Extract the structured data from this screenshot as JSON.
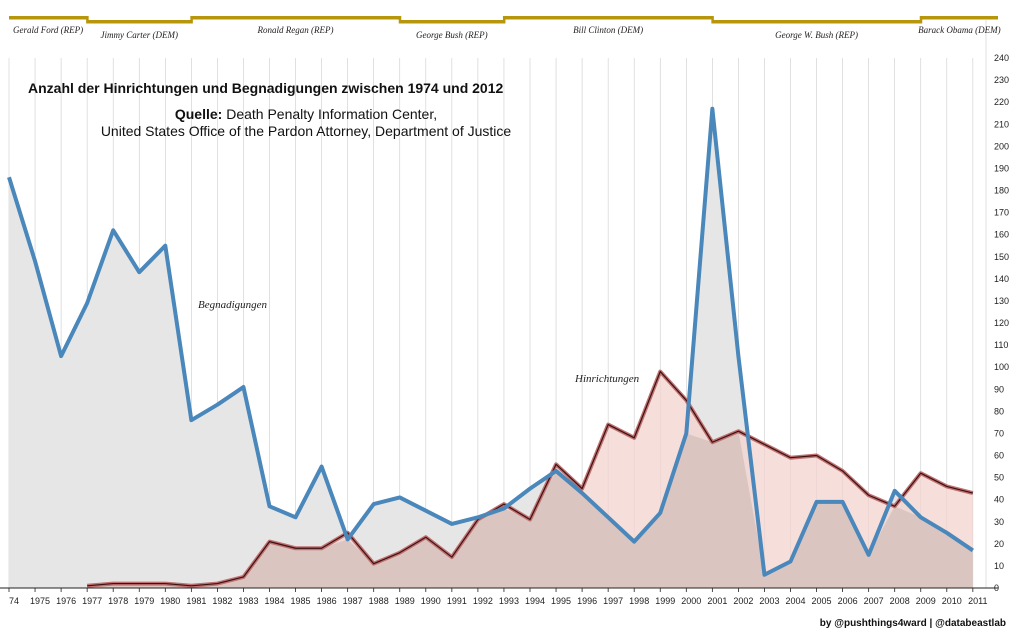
{
  "title": "Anzahl der Hinrichtungen und Begnadigungen zwischen 1974 und 2012",
  "source_label": "Quelle:",
  "source_line1": "Death Penalty Information Center,",
  "source_line2": "United States Office of the Pardon Attorney, Department of Justice",
  "credit": "by @pushthings4ward | @databeastlab",
  "colors": {
    "pardons_line": "#4a87bb",
    "pardons_fill": "#e6e6e6",
    "executions_line": "#c07070",
    "executions_fill": "#f3d3cf",
    "overlap_fill": "#d4c0bc",
    "president_bar": "#b8960c",
    "grid": "#cccccc"
  },
  "presidents": [
    {
      "label": "Gerald Ford (REP)",
      "start": 1974,
      "end": 1977
    },
    {
      "label": "Jimmy Carter (DEM)",
      "start": 1977,
      "end": 1981
    },
    {
      "label": "Ronald Regan (REP)",
      "start": 1981,
      "end": 1989
    },
    {
      "label": "George Bush (REP)",
      "start": 1989,
      "end": 1993
    },
    {
      "label": "Bill Clinton (DEM)",
      "start": 1993,
      "end": 2001
    },
    {
      "label": "George W. Bush (REP)",
      "start": 2001,
      "end": 2009
    },
    {
      "label": "Barack Obama (DEM)",
      "start": 2009,
      "end": 2012
    }
  ],
  "chart_data": {
    "type": "area",
    "x": [
      1974,
      1975,
      1976,
      1977,
      1978,
      1979,
      1980,
      1981,
      1982,
      1983,
      1984,
      1985,
      1986,
      1987,
      1988,
      1989,
      1990,
      1991,
      1992,
      1993,
      1994,
      1995,
      1996,
      1997,
      1998,
      1999,
      2000,
      2001,
      2002,
      2003,
      2004,
      2005,
      2006,
      2007,
      2008,
      2009,
      2010,
      2011
    ],
    "x_tick_labels": [
      "74",
      "1975",
      "1976",
      "1977",
      "1978",
      "1979",
      "1980",
      "1981",
      "1982",
      "1983",
      "1984",
      "1985",
      "1986",
      "1987",
      "1988",
      "1989",
      "1990",
      "1991",
      "1992",
      "1993",
      "1994",
      "1995",
      "1996",
      "1997",
      "1998",
      "1999",
      "2000",
      "2001",
      "2002",
      "2003",
      "2004",
      "2005",
      "2006",
      "2007",
      "2008",
      "2009",
      "2010",
      "2011"
    ],
    "series": [
      {
        "name": "Begnadigungen",
        "values": [
          186,
          148,
          105,
          129,
          162,
          143,
          155,
          76,
          83,
          91,
          37,
          32,
          55,
          22,
          38,
          41,
          35,
          29,
          32,
          36,
          45,
          53,
          43,
          32,
          21,
          34,
          70,
          217,
          105,
          6,
          12,
          39,
          39,
          15,
          44,
          32,
          25,
          17
        ]
      },
      {
        "name": "Hinrichtungen",
        "values": [
          null,
          null,
          null,
          1,
          2,
          2,
          2,
          1,
          2,
          5,
          21,
          18,
          18,
          25,
          11,
          16,
          23,
          14,
          31,
          38,
          31,
          56,
          45,
          74,
          68,
          98,
          85,
          66,
          71,
          65,
          59,
          60,
          53,
          42,
          37,
          52,
          46,
          43
        ]
      }
    ],
    "ylim": [
      0,
      240
    ],
    "y_ticks": [
      0,
      10,
      20,
      30,
      40,
      50,
      60,
      70,
      80,
      90,
      100,
      110,
      120,
      130,
      140,
      150,
      160,
      170,
      180,
      190,
      200,
      210,
      220,
      230,
      240
    ],
    "y_tick_labels": [
      "0",
      "10",
      "20",
      "30",
      "40",
      "50",
      "60",
      "70",
      "80",
      "90",
      "100",
      "110",
      "120",
      "130",
      "140",
      "150",
      "160",
      "170",
      "180",
      "190",
      "200",
      "210",
      "220",
      "230",
      "240"
    ],
    "grid": true
  }
}
